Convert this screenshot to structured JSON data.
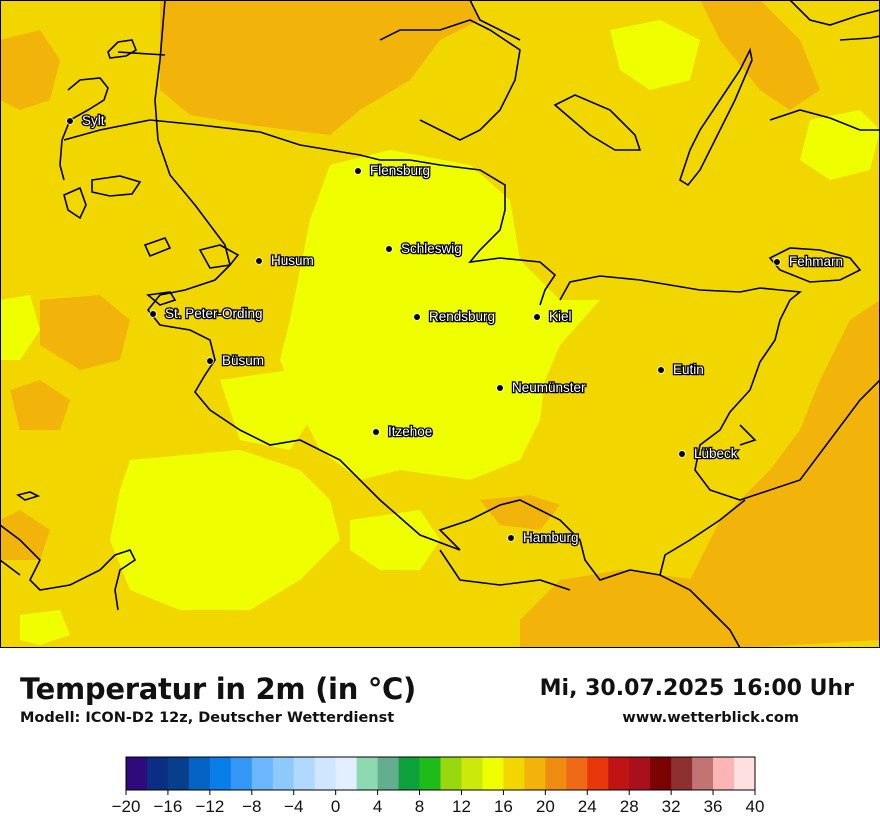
{
  "title": "Temperatur in 2m (in °C)",
  "model": "Modell: ICON-D2 12z, Deutscher Wetterdienst",
  "datetime": "Mi, 30.07.2025 16:00 Uhr",
  "site": "www.wetterblick.com",
  "cities": [
    "Sylt",
    "Flensburg",
    "Schleswig",
    "Husum",
    "Fehmarn",
    "St. Peter-Ording",
    "Rendsburg",
    "Kiel",
    "Büsum",
    "Eutin",
    "Neumünster",
    "Itzehoe",
    "Lübeck",
    "Hamburg"
  ],
  "legend": {
    "tick_labels": [
      "−20",
      "−16",
      "−12",
      "−8",
      "−4",
      "0",
      "4",
      "8",
      "12",
      "16",
      "20",
      "24",
      "28",
      "32",
      "36",
      "40"
    ],
    "colors": [
      "#2f0a7d",
      "#0a2f82",
      "#083f8c",
      "#0563c4",
      "#0a7ee8",
      "#3597f5",
      "#6bb6fc",
      "#8ec9fc",
      "#b0d9fd",
      "#cfe7fe",
      "#e1efff",
      "#8fd9b2",
      "#62ae8e",
      "#0ea03d",
      "#1fbb19",
      "#99d70f",
      "#cde80b",
      "#f0ff00",
      "#f2d600",
      "#f2b40a",
      "#f08c10",
      "#ee6a16",
      "#e8370d",
      "#be1414",
      "#a8111c",
      "#7c0303",
      "#8e3030",
      "#c27474",
      "#fdb4b4",
      "#ffe0e0"
    ]
  },
  "map_colors": {
    "land_warm": "#f2d600",
    "land_cooler": "#f0ff00",
    "land_hot": "#f2b40a",
    "coast": "#000000"
  }
}
